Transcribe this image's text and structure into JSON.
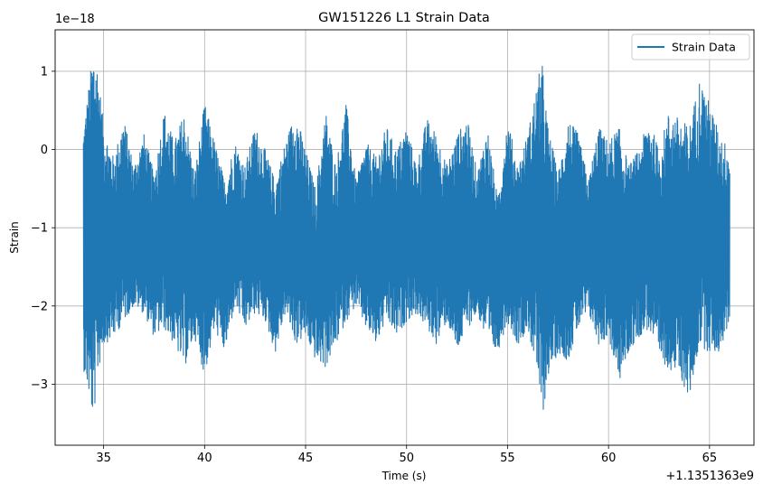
{
  "chart_data": {
    "type": "line",
    "title": "GW151226 L1 Strain Data",
    "xlabel": "Time (s)",
    "ylabel": "Strain",
    "x_offset_label": "+1.1351363e9",
    "y_scale_label": "1e−18",
    "xlim": [
      32.6,
      67.2
    ],
    "ylim": [
      -3.78,
      1.53
    ],
    "xticks": [
      35,
      40,
      45,
      50,
      55,
      60,
      65
    ],
    "yticks": [
      1,
      0,
      -1,
      -2,
      -3
    ],
    "ytick_labels": [
      "1",
      "0",
      "−1",
      "−2",
      "−3"
    ],
    "grid": true,
    "legend_position": "top-right",
    "color": "#1f77b4",
    "series": [
      {
        "name": "Strain Data",
        "envelope": {
          "x": [
            34.0,
            34.3,
            34.5,
            34.7,
            35.0,
            35.5,
            36.0,
            36.5,
            37.0,
            37.5,
            38.0,
            38.5,
            39.0,
            39.5,
            40.0,
            40.5,
            41.0,
            41.5,
            42.0,
            42.5,
            43.0,
            43.5,
            44.0,
            44.5,
            45.0,
            45.5,
            46.0,
            46.5,
            47.0,
            47.5,
            48.0,
            48.5,
            49.0,
            49.5,
            50.0,
            50.5,
            51.0,
            51.5,
            52.0,
            52.5,
            53.0,
            53.5,
            54.0,
            54.5,
            55.0,
            55.5,
            56.0,
            56.5,
            56.7,
            57.0,
            57.5,
            58.0,
            58.5,
            59.0,
            59.5,
            60.0,
            60.5,
            61.0,
            61.5,
            62.0,
            62.5,
            63.0,
            63.5,
            64.0,
            64.5,
            65.0,
            65.5,
            66.0
          ],
          "max": [
            0.3,
            0.9,
            1.3,
            1.1,
            0.3,
            -0.1,
            0.4,
            -0.2,
            0.2,
            -0.3,
            0.5,
            0.1,
            0.5,
            -0.3,
            0.6,
            0.1,
            -0.4,
            0.1,
            -0.2,
            0.3,
            0.0,
            -0.4,
            0.1,
            0.5,
            0.0,
            -0.5,
            0.5,
            -0.2,
            0.6,
            -0.4,
            0.1,
            -0.1,
            0.3,
            0.0,
            0.3,
            -0.2,
            0.4,
            0.2,
            -0.2,
            0.2,
            0.4,
            -0.3,
            0.3,
            -0.6,
            0.4,
            -0.2,
            0.2,
            0.9,
            1.15,
            0.3,
            -0.3,
            0.4,
            0.2,
            -0.4,
            0.3,
            0.1,
            0.3,
            -0.2,
            0.0,
            0.4,
            0.0,
            0.5,
            0.4,
            0.3,
            0.9,
            0.6,
            0.2,
            0.0
          ],
          "min": [
            -2.8,
            -3.2,
            -3.5,
            -2.9,
            -2.5,
            -2.4,
            -2.2,
            -2.0,
            -2.1,
            -2.4,
            -2.3,
            -2.5,
            -2.8,
            -2.4,
            -2.9,
            -2.3,
            -2.6,
            -2.0,
            -2.3,
            -2.1,
            -2.2,
            -2.6,
            -2.1,
            -2.5,
            -2.4,
            -2.7,
            -2.8,
            -2.5,
            -2.2,
            -2.0,
            -2.3,
            -2.5,
            -2.2,
            -2.4,
            -2.2,
            -2.1,
            -2.3,
            -2.5,
            -2.2,
            -2.6,
            -2.3,
            -2.1,
            -2.5,
            -2.6,
            -2.2,
            -2.5,
            -2.3,
            -2.9,
            -3.5,
            -2.9,
            -2.6,
            -2.7,
            -2.3,
            -2.1,
            -2.5,
            -2.4,
            -3.0,
            -2.6,
            -2.4,
            -2.3,
            -2.7,
            -2.8,
            -2.9,
            -3.2,
            -2.5,
            -2.6,
            -2.6,
            -2.2
          ]
        }
      }
    ]
  }
}
